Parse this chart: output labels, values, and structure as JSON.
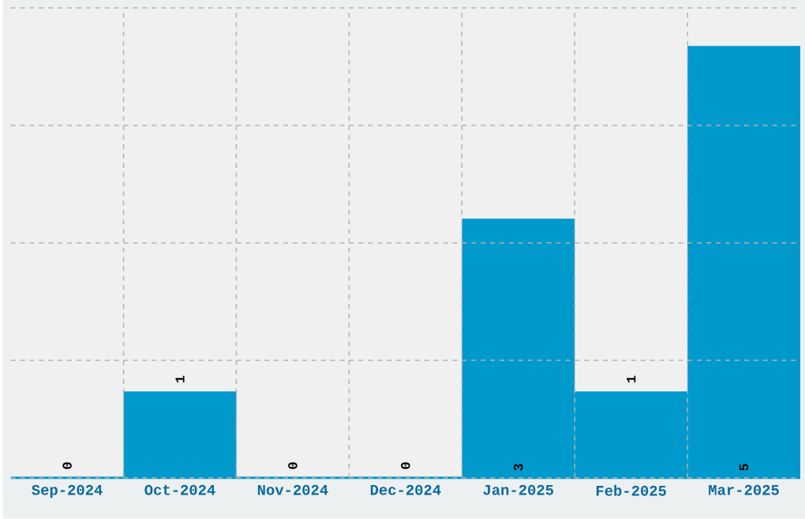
{
  "chart_data": {
    "type": "bar",
    "categories": [
      "Sep-2024",
      "Oct-2024",
      "Nov-2024",
      "Dec-2024",
      "Jan-2025",
      "Feb-2025",
      "Mar-2025"
    ],
    "values": [
      0,
      1,
      0,
      0,
      3,
      1,
      5
    ],
    "color": "#0099cc",
    "ylim": [
      0,
      5.44
    ],
    "yticks": [
      {
        "value": 0,
        "label": null
      },
      {
        "value": 1.36,
        "label": null
      },
      {
        "value": 2.72,
        "label": null
      },
      {
        "value": 4.08,
        "label": null
      },
      {
        "value": 5.44,
        "label": null
      }
    ],
    "tick_labels": "x",
    "grid": true,
    "data_labels": true
  }
}
